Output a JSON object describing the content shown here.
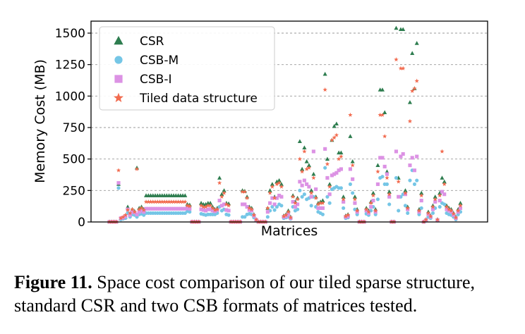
{
  "caption": {
    "label": "Figure 11.",
    "text": "Space cost comparison of our tiled sparse structure, standard CSR and two CSB formats of matrices tested."
  },
  "chart_data": {
    "type": "scatter",
    "xlabel": "Matrices",
    "ylabel": "Memory Cost (MB)",
    "ylim": [
      0,
      1550
    ],
    "yticks": [
      0,
      250,
      500,
      750,
      1000,
      1250,
      1500
    ],
    "ytick_labels": [
      "0",
      "250",
      "500",
      "750",
      "1000",
      "1250",
      "1500"
    ],
    "grid": "horizontal dashed",
    "legend_position": "top-left",
    "x": [
      1,
      2,
      3,
      4,
      5,
      6,
      7,
      8,
      9,
      10,
      11,
      12,
      13,
      14,
      15,
      16,
      17,
      18,
      19,
      20,
      21,
      22,
      23,
      24,
      25,
      26,
      27,
      28,
      29,
      30,
      31,
      32,
      33,
      34,
      35,
      36,
      37,
      38,
      39,
      40,
      41,
      42,
      43,
      44,
      45,
      46,
      47,
      48,
      49,
      50,
      51,
      52,
      53,
      54,
      55,
      56,
      57,
      58,
      59,
      60,
      61,
      62,
      63,
      64,
      65,
      66,
      67,
      68,
      69,
      70,
      71,
      72,
      73,
      74,
      75,
      76,
      77,
      78,
      79,
      80,
      81,
      82,
      83,
      84,
      85,
      86,
      87,
      88,
      89,
      90,
      91,
      92,
      93,
      94,
      95,
      96,
      97,
      98,
      99,
      100,
      101,
      102,
      103,
      104,
      105,
      106,
      107,
      108,
      109,
      110,
      111,
      112,
      113,
      114,
      115,
      116,
      117,
      118,
      119,
      120,
      121,
      122,
      123,
      124,
      125,
      126,
      127,
      128,
      129,
      130,
      131,
      132,
      133,
      134,
      135,
      136,
      137,
      138,
      139,
      140,
      141,
      142,
      143,
      144,
      145,
      146,
      147,
      148,
      149,
      150,
      151,
      152,
      153,
      154,
      155,
      156,
      157,
      158,
      159,
      160
    ],
    "series": [
      {
        "name": "CSR",
        "color": "#2e7d4f",
        "marker": "triangle",
        "values": [
          2,
          2,
          2,
          2,
          300,
          25,
          30,
          40,
          120,
          60,
          100,
          85,
          430,
          110,
          120,
          100,
          210,
          210,
          210,
          210,
          210,
          210,
          210,
          210,
          210,
          210,
          210,
          210,
          210,
          210,
          210,
          210,
          210,
          210,
          140,
          135,
          2,
          2,
          2,
          2,
          150,
          140,
          140,
          150,
          150,
          120,
          100,
          110,
          350,
          220,
          250,
          150,
          145,
          2,
          2,
          2,
          2,
          2,
          250,
          245,
          200,
          120,
          110,
          60,
          20,
          2,
          2,
          2,
          2,
          110,
          250,
          300,
          200,
          320,
          330,
          300,
          50,
          60,
          90,
          40,
          210,
          160,
          190,
          640,
          420,
          590,
          480,
          450,
          250,
          380,
          200,
          150,
          160,
          170,
          1175,
          500,
          300,
          650,
          760,
          780,
          550,
          550,
          200,
          50,
          60,
          680,
          480,
          200,
          100,
          2,
          2,
          2,
          110,
          90,
          160,
          230,
          100,
          450,
          1050,
          1050,
          870,
          400,
          240,
          2,
          2,
          1540,
          350,
          1530,
          1530,
          250,
          120,
          950,
          1340,
          1060,
          1420,
          100,
          230,
          2,
          20,
          80,
          50,
          130,
          200,
          20,
          230,
          350,
          320,
          130,
          110,
          100,
          70,
          40,
          100,
          150
        ]
      },
      {
        "name": "CSB-M",
        "color": "#75c6e6",
        "marker": "circle",
        "values": [
          1,
          1,
          1,
          1,
          270,
          20,
          25,
          30,
          70,
          40,
          60,
          55,
          40,
          60,
          65,
          55,
          70,
          70,
          70,
          70,
          70,
          70,
          70,
          70,
          70,
          70,
          70,
          70,
          70,
          70,
          70,
          70,
          70,
          70,
          85,
          80,
          1,
          1,
          1,
          1,
          65,
          60,
          55,
          60,
          60,
          60,
          60,
          70,
          120,
          90,
          100,
          60,
          55,
          1,
          1,
          1,
          1,
          1,
          40,
          40,
          60,
          65,
          60,
          35,
          15,
          1,
          1,
          1,
          1,
          40,
          90,
          120,
          95,
          120,
          140,
          130,
          30,
          35,
          40,
          25,
          120,
          90,
          100,
          250,
          200,
          220,
          180,
          190,
          130,
          200,
          120,
          80,
          70,
          60,
          430,
          200,
          150,
          260,
          270,
          280,
          270,
          270,
          110,
          30,
          35,
          300,
          230,
          100,
          60,
          1,
          1,
          1,
          65,
          55,
          90,
          120,
          60,
          180,
          350,
          360,
          300,
          300,
          140,
          1,
          1,
          350,
          90,
          200,
          220,
          130,
          70,
          330,
          410,
          300,
          330,
          60,
          110,
          1,
          10,
          40,
          30,
          70,
          110,
          10,
          120,
          150,
          140,
          70,
          60,
          55,
          40,
          20,
          60,
          80
        ]
      },
      {
        "name": "CSB-I",
        "color": "#dc92e4",
        "marker": "square",
        "values": [
          1,
          1,
          1,
          1,
          310,
          30,
          35,
          45,
          100,
          55,
          80,
          75,
          60,
          80,
          90,
          80,
          105,
          105,
          105,
          105,
          105,
          105,
          105,
          105,
          105,
          105,
          105,
          105,
          105,
          105,
          105,
          105,
          105,
          105,
          110,
          105,
          1,
          1,
          1,
          1,
          100,
          95,
          90,
          100,
          100,
          90,
          85,
          95,
          170,
          130,
          140,
          95,
          90,
          1,
          1,
          1,
          1,
          1,
          140,
          140,
          120,
          95,
          90,
          50,
          18,
          1,
          1,
          1,
          1,
          80,
          150,
          190,
          140,
          190,
          210,
          200,
          40,
          45,
          60,
          30,
          160,
          120,
          140,
          320,
          290,
          330,
          300,
          280,
          200,
          560,
          260,
          110,
          110,
          110,
          580,
          350,
          220,
          370,
          380,
          390,
          410,
          420,
          160,
          40,
          45,
          420,
          340,
          150,
          80,
          1,
          1,
          1,
          90,
          70,
          120,
          170,
          80,
          300,
          510,
          510,
          440,
          380,
          200,
          1,
          1,
          560,
          200,
          520,
          540,
          220,
          100,
          450,
          510,
          410,
          520,
          80,
          170,
          1,
          15,
          60,
          40,
          100,
          160,
          15,
          170,
          240,
          220,
          100,
          90,
          80,
          55,
          30,
          80,
          110
        ]
      },
      {
        "name": "Tiled data structure",
        "color": "#f26b4f",
        "marker": "star",
        "values": [
          1,
          1,
          1,
          1,
          410,
          30,
          40,
          55,
          95,
          70,
          100,
          80,
          420,
          100,
          110,
          95,
          160,
          160,
          160,
          160,
          160,
          160,
          160,
          160,
          160,
          160,
          160,
          160,
          160,
          160,
          160,
          160,
          160,
          160,
          130,
          125,
          1,
          1,
          1,
          1,
          130,
          120,
          120,
          130,
          130,
          110,
          95,
          100,
          310,
          200,
          230,
          140,
          130,
          1,
          1,
          1,
          1,
          1,
          240,
          240,
          190,
          110,
          100,
          55,
          18,
          1,
          1,
          1,
          1,
          110,
          230,
          280,
          190,
          300,
          310,
          280,
          45,
          55,
          80,
          35,
          200,
          150,
          180,
          500,
          400,
          560,
          420,
          430,
          230,
          350,
          190,
          140,
          150,
          150,
          1050,
          460,
          280,
          650,
          670,
          690,
          500,
          520,
          180,
          45,
          55,
          850,
          450,
          180,
          90,
          1,
          1,
          1,
          100,
          80,
          150,
          210,
          90,
          400,
          850,
          850,
          680,
          350,
          220,
          1,
          1,
          1290,
          320,
          1220,
          1220,
          230,
          110,
          800,
          1040,
          1060,
          1120,
          90,
          210,
          1,
          18,
          70,
          45,
          120,
          180,
          18,
          210,
          560,
          300,
          120,
          100,
          90,
          65,
          35,
          90,
          130
        ]
      }
    ]
  }
}
